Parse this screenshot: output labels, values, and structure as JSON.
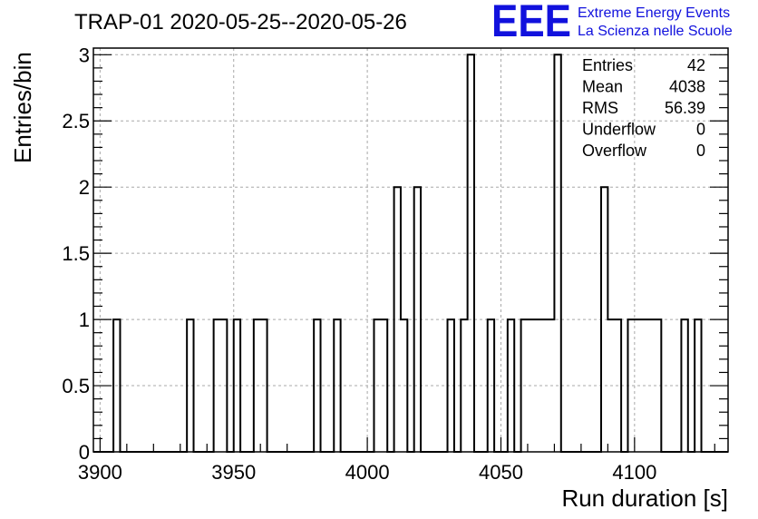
{
  "chart_data": {
    "type": "bar",
    "title": "TRAP-01 2020-05-25--2020-05-26",
    "xlabel": "Run duration [s]",
    "ylabel": "Entries/bin",
    "xlim": [
      3897.5,
      4135
    ],
    "ylim": [
      0,
      3.05
    ],
    "bin_width": 2.5,
    "x_ticks": [
      3900,
      3950,
      4000,
      4050,
      4100
    ],
    "y_ticks": [
      0,
      0.5,
      1,
      1.5,
      2,
      2.5,
      3
    ],
    "x_tick_labels": [
      "3900",
      "3950",
      "4000",
      "4050",
      "4100"
    ],
    "y_tick_labels": [
      "0",
      "0.5",
      "1",
      "1.5",
      "2",
      "2.5",
      "3"
    ],
    "grid": true,
    "bins": [
      {
        "x": 3905,
        "count": 1
      },
      {
        "x": 3932.5,
        "count": 1
      },
      {
        "x": 3942.5,
        "count": 1
      },
      {
        "x": 3945,
        "count": 1
      },
      {
        "x": 3950,
        "count": 1
      },
      {
        "x": 3957.5,
        "count": 1
      },
      {
        "x": 3960,
        "count": 1
      },
      {
        "x": 3980,
        "count": 1
      },
      {
        "x": 3987.5,
        "count": 1
      },
      {
        "x": 4002.5,
        "count": 1
      },
      {
        "x": 4005,
        "count": 1
      },
      {
        "x": 4010,
        "count": 2
      },
      {
        "x": 4012.5,
        "count": 1
      },
      {
        "x": 4017.5,
        "count": 2
      },
      {
        "x": 4030,
        "count": 1
      },
      {
        "x": 4035,
        "count": 1
      },
      {
        "x": 4037.5,
        "count": 3
      },
      {
        "x": 4045,
        "count": 1
      },
      {
        "x": 4052.5,
        "count": 1
      },
      {
        "x": 4057.5,
        "count": 1
      },
      {
        "x": 4060,
        "count": 1
      },
      {
        "x": 4062.5,
        "count": 1
      },
      {
        "x": 4065,
        "count": 1
      },
      {
        "x": 4067.5,
        "count": 1
      },
      {
        "x": 4070,
        "count": 3
      },
      {
        "x": 4087.5,
        "count": 2
      },
      {
        "x": 4090,
        "count": 1
      },
      {
        "x": 4092.5,
        "count": 1
      },
      {
        "x": 4097.5,
        "count": 1
      },
      {
        "x": 4100,
        "count": 1
      },
      {
        "x": 4102.5,
        "count": 1
      },
      {
        "x": 4105,
        "count": 1
      },
      {
        "x": 4107.5,
        "count": 1
      },
      {
        "x": 4117.5,
        "count": 1
      },
      {
        "x": 4122.5,
        "count": 1
      }
    ],
    "stats": [
      {
        "label": "Entries",
        "value": "42"
      },
      {
        "label": "Mean",
        "value": "4038"
      },
      {
        "label": "RMS",
        "value": "56.39"
      },
      {
        "label": "Underflow",
        "value": "0"
      },
      {
        "label": "Overflow",
        "value": "0"
      }
    ]
  },
  "logo": {
    "mark": "EEE",
    "line1": "Extreme Energy Events",
    "line2": "La Scienza nelle Scuole",
    "color": "#1111dd"
  }
}
